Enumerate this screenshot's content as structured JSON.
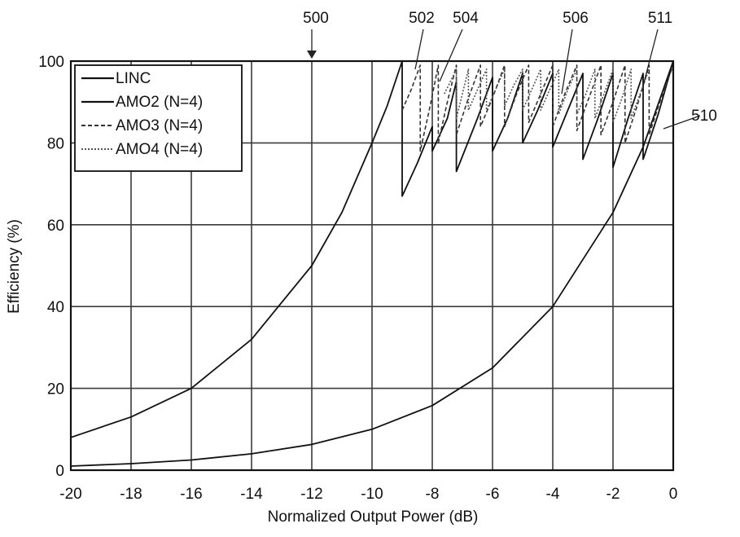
{
  "chart_data": {
    "type": "line",
    "title": "",
    "xlabel": "Normalized Output Power (dB)",
    "ylabel": "Efficiency (%)",
    "xlim": [
      -20,
      0
    ],
    "ylim": [
      0,
      100
    ],
    "x_ticks": [
      -20,
      -18,
      -16,
      -14,
      -12,
      -10,
      -8,
      -6,
      -4,
      -2,
      0
    ],
    "y_ticks": [
      0,
      20,
      40,
      60,
      80,
      100
    ],
    "grid": true,
    "legend_position": "top-left",
    "series": [
      {
        "name": "LINC",
        "x": [
          -20,
          -18,
          -16,
          -14,
          -12,
          -10,
          -8,
          -6,
          -4,
          -2,
          -1,
          0
        ],
        "values": [
          1,
          1.6,
          2.5,
          4,
          6.3,
          10,
          15.8,
          25,
          40,
          63,
          79,
          100
        ]
      },
      {
        "name": "AMO2 (N=4)",
        "x": [
          -20,
          -18,
          -16,
          -14,
          -12,
          -11,
          -10,
          -9.5,
          -9,
          -9.0,
          -8.5,
          -8.0,
          -8.0,
          -7.5,
          -7.2,
          -7.2,
          -6.5,
          -6.0,
          -6.0,
          -5.5,
          -5.0,
          -5.0,
          -4.5,
          -4.0,
          -4.0,
          -3.5,
          -3.0,
          -3.0,
          -2.5,
          -2.0,
          -2.0,
          -1.5,
          -1.0,
          -1.0,
          -0.5,
          0
        ],
        "values": [
          8,
          13,
          20,
          32,
          50,
          63,
          80,
          89,
          100,
          67,
          75,
          84,
          78,
          86,
          95,
          73,
          86,
          96,
          78,
          86,
          97,
          80,
          88,
          97,
          79,
          88,
          97,
          76,
          86,
          97,
          74,
          86,
          97,
          76,
          87,
          100
        ]
      },
      {
        "name": "AMO3 (N=4)",
        "x": [
          -9.0,
          -8.7,
          -8.4,
          -8.4,
          -8.1,
          -7.8,
          -7.8,
          -7.5,
          -7.2,
          -7.2,
          -6.8,
          -6.4,
          -6.4,
          -6.0,
          -5.6,
          -5.6,
          -5.2,
          -4.8,
          -4.8,
          -4.4,
          -4.0,
          -4.0,
          -3.6,
          -3.2,
          -3.2,
          -2.8,
          -2.4,
          -2.4,
          -2.0,
          -1.6,
          -1.6,
          -1.2,
          -0.8,
          -0.8,
          -0.4,
          0
        ],
        "values": [
          88,
          93,
          99,
          78,
          88,
          99,
          80,
          90,
          99,
          82,
          91,
          99,
          84,
          91,
          99,
          84,
          92,
          99,
          85,
          92,
          99,
          84,
          92,
          99,
          83,
          91,
          99,
          82,
          90,
          99,
          80,
          89,
          99,
          82,
          91,
          99
        ]
      },
      {
        "name": "AMO4 (N=4)",
        "x": [
          -7.6,
          -7.4,
          -7.2,
          -7.2,
          -7.0,
          -6.8,
          -6.8,
          -6.5,
          -6.2,
          -6.2,
          -5.9,
          -5.6,
          -5.6,
          -5.3,
          -5.0,
          -5.0,
          -4.7,
          -4.4,
          -4.4,
          -4.1,
          -3.8,
          -3.8,
          -3.5,
          -3.2,
          -3.2,
          -2.9,
          -2.6,
          -2.6,
          -2.3,
          -2.0,
          -2.0,
          -1.7,
          -1.4,
          -1.4,
          -1.1,
          -0.8
        ],
        "values": [
          92,
          95,
          98,
          86,
          92,
          98,
          88,
          93,
          98,
          88,
          93,
          98,
          89,
          94,
          98,
          88,
          93,
          98,
          88,
          93,
          98,
          87,
          93,
          98,
          87,
          92,
          98,
          86,
          92,
          98,
          85,
          91,
          98,
          86,
          92,
          98
        ]
      }
    ],
    "annotations": [
      "500",
      "502",
      "504",
      "506",
      "511",
      "510"
    ]
  }
}
